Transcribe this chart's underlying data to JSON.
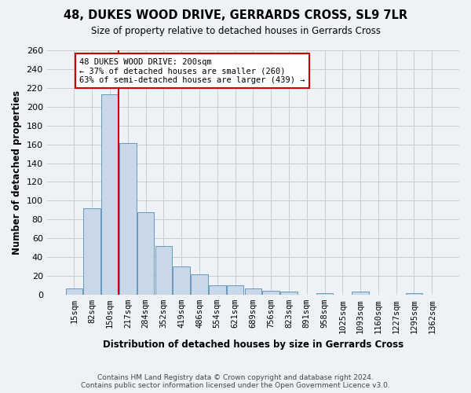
{
  "title1": "48, DUKES WOOD DRIVE, GERRARDS CROSS, SL9 7LR",
  "title2": "Size of property relative to detached houses in Gerrards Cross",
  "xlabel": "Distribution of detached houses by size in Gerrards Cross",
  "ylabel": "Number of detached properties",
  "footer1": "Contains HM Land Registry data © Crown copyright and database right 2024.",
  "footer2": "Contains public sector information licensed under the Open Government Licence v3.0.",
  "bin_labels": [
    "15sqm",
    "82sqm",
    "150sqm",
    "217sqm",
    "284sqm",
    "352sqm",
    "419sqm",
    "486sqm",
    "554sqm",
    "621sqm",
    "689sqm",
    "756sqm",
    "823sqm",
    "891sqm",
    "958sqm",
    "1025sqm",
    "1093sqm",
    "1160sqm",
    "1227sqm",
    "1295sqm",
    "1362sqm"
  ],
  "bar_values": [
    7,
    92,
    213,
    161,
    88,
    52,
    30,
    22,
    10,
    10,
    7,
    4,
    3,
    0,
    2,
    0,
    3,
    0,
    0,
    2,
    0
  ],
  "bar_color": "#c8d8e8",
  "bar_edge_color": "#6699bb",
  "grid_color": "#cccccc",
  "vline_x": 2.5,
  "vline_color": "#cc0000",
  "annotation_line1": "48 DUKES WOOD DRIVE: 200sqm",
  "annotation_line2": "← 37% of detached houses are smaller (260)",
  "annotation_line3": "63% of semi-detached houses are larger (439) →",
  "annotation_box_color": "#ffffff",
  "annotation_box_edge": "#cc0000",
  "ylim": [
    0,
    260
  ],
  "yticks": [
    0,
    20,
    40,
    60,
    80,
    100,
    120,
    140,
    160,
    180,
    200,
    220,
    240,
    260
  ],
  "background_color": "#eef2f7"
}
